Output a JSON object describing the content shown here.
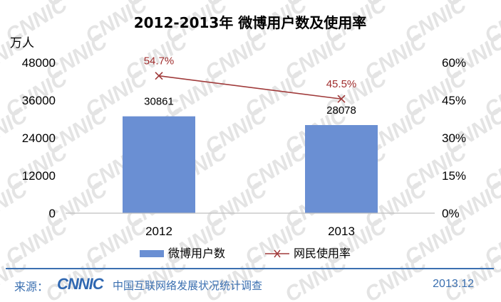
{
  "chart_data": {
    "type": "bar",
    "title": "2012-2013年 微博用户数及使用率",
    "categories": [
      "2012",
      "2013"
    ],
    "y_left": {
      "unit": "万人",
      "range": [
        0,
        48000
      ],
      "ticks": [
        "0",
        "12000",
        "24000",
        "36000",
        "48000"
      ]
    },
    "y_right": {
      "range": [
        0,
        60
      ],
      "ticks": [
        "0%",
        "15%",
        "30%",
        "45%",
        "60%"
      ]
    },
    "series": [
      {
        "name": "微博用户数",
        "type": "bar",
        "axis": "left",
        "values": [
          30861,
          28078
        ],
        "labels": [
          "30861",
          "28078"
        ],
        "color": "#6a8fd3"
      },
      {
        "name": "网民使用率",
        "type": "line",
        "axis": "right",
        "values": [
          54.7,
          45.5
        ],
        "labels": [
          "54.7%",
          "45.5%"
        ],
        "color": "#a03a3a",
        "marker": "x"
      }
    ],
    "grid": false,
    "legend": "bottom"
  },
  "watermark": "CNNIC",
  "footer": {
    "source_label": "来源：",
    "logo": "CNNIC",
    "org": "中国互联网络发展状况统计调查",
    "date": "2013.12"
  }
}
